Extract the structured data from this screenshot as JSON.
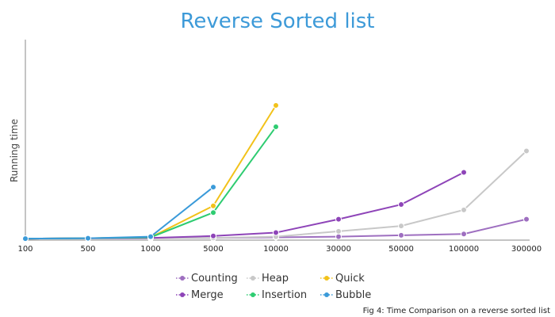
{
  "chart_data": {
    "type": "line",
    "title": "Reverse Sorted list",
    "ylabel": "Running time",
    "xlabel": "",
    "categories": [
      "100",
      "500",
      "1000",
      "5000",
      "10000",
      "30000",
      "50000",
      "100000",
      "300000"
    ],
    "y_ticks_shown": false,
    "grid": false,
    "legend_position": "bottom",
    "series": [
      {
        "name": "Counting",
        "color": "#9e6fc0",
        "values": [
          0.5,
          0.8,
          0.8,
          1.0,
          1.5,
          2.0,
          3.0,
          4.0,
          15.0
        ]
      },
      {
        "name": "Heap",
        "color": "#c8c8c8",
        "values": [
          0.5,
          0.8,
          0.8,
          1.0,
          2.0,
          6.0,
          10.0,
          22.0,
          66.0
        ]
      },
      {
        "name": "Quick",
        "color": "#f2c21a",
        "values": [
          0.5,
          0.8,
          1.5,
          25.0,
          100.0,
          null,
          null,
          null,
          null
        ]
      },
      {
        "name": "Merge",
        "color": "#8e44b8",
        "values": [
          0.5,
          0.8,
          1.0,
          2.5,
          5.0,
          15.0,
          26.0,
          50.0,
          null
        ]
      },
      {
        "name": "Insertion",
        "color": "#2ecc71",
        "values": [
          0.5,
          0.8,
          1.5,
          20.0,
          84.0,
          null,
          null,
          null,
          null
        ]
      },
      {
        "name": "Bubble",
        "color": "#3a9ad9",
        "values": [
          0.5,
          0.8,
          2.0,
          39.0,
          null,
          null,
          null,
          null,
          null
        ]
      }
    ],
    "ylim": [
      0,
      100
    ]
  },
  "caption": "Fig 4: Time Comparison on a reverse sorted list"
}
